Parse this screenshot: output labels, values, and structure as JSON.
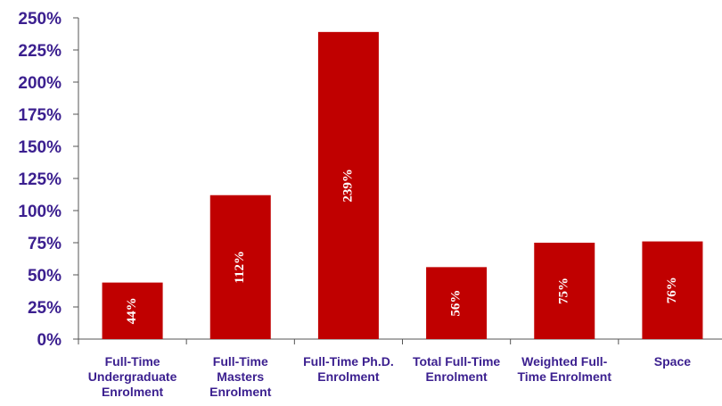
{
  "chart_data": {
    "type": "bar",
    "categories": [
      [
        "Full-Time",
        "Undergraduate",
        "Enrolment"
      ],
      [
        "Full-Time",
        "Masters",
        "Enrolment"
      ],
      [
        "Full-Time Ph.D.",
        "Enrolment"
      ],
      [
        "Total Full-Time",
        "Enrolment"
      ],
      [
        "Weighted Full-",
        "Time Enrolment"
      ],
      [
        "Space"
      ]
    ],
    "values": [
      44,
      112,
      239,
      56,
      75,
      76
    ],
    "data_labels": [
      "44%",
      "112%",
      "239%",
      "56%",
      "75%",
      "76%"
    ],
    "ylim": [
      0,
      250
    ],
    "y_ticks": [
      "0%",
      "25%",
      "50%",
      "75%",
      "100%",
      "125%",
      "150%",
      "175%",
      "200%",
      "225%",
      "250%"
    ],
    "grid": false,
    "bar_color": "#c00000",
    "label_color": "#3b1f8f",
    "data_label_color": "#ffffff"
  }
}
